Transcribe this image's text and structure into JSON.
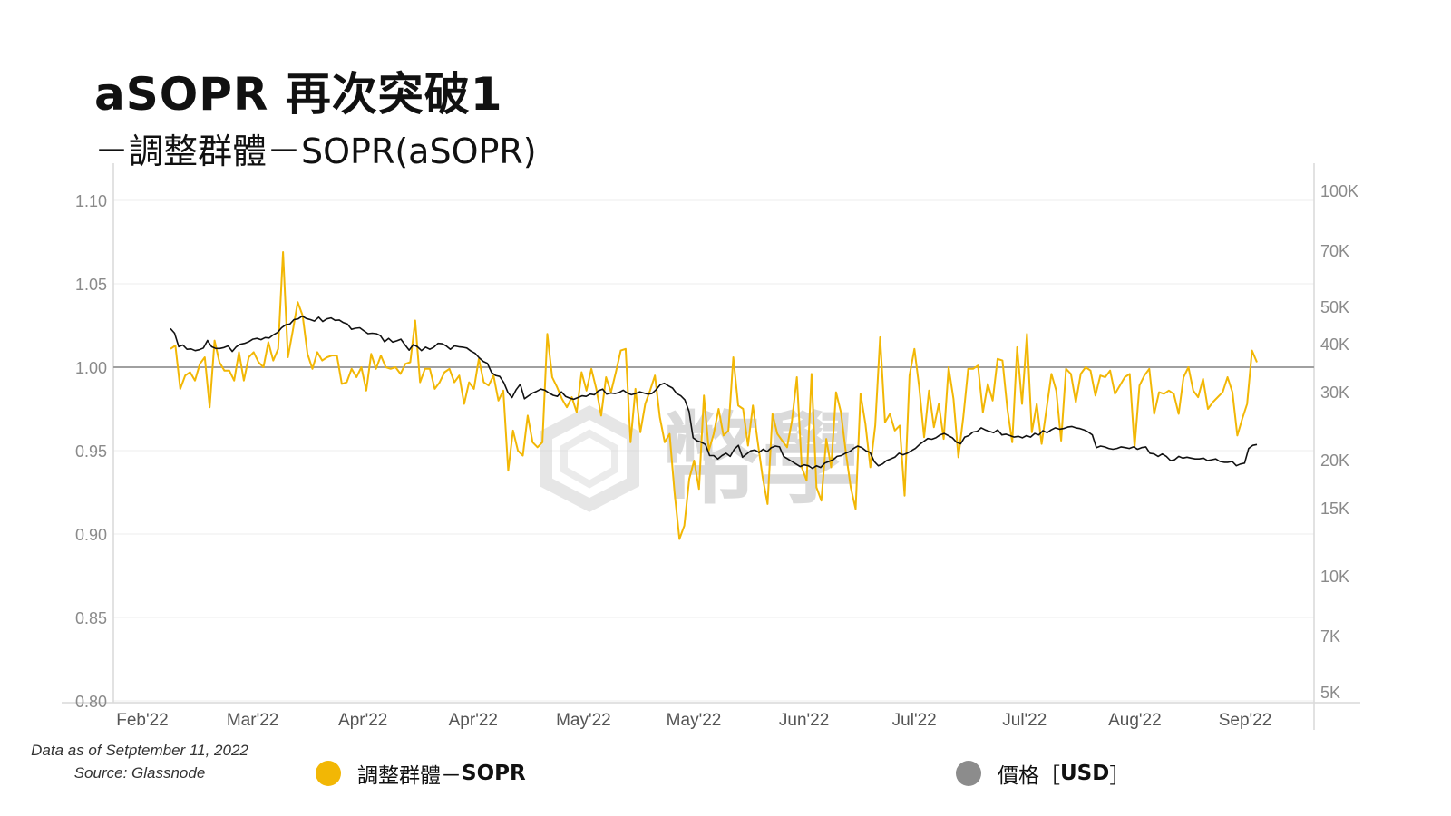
{
  "title": "aSOPR 再次突破1",
  "subtitle": "－調整群體－SOPR(aSOPR)",
  "watermark": "幣學",
  "footer": {
    "line1": "Data as of Setptember 11, 2022",
    "line2": "Source: Glassnode"
  },
  "legend": {
    "sopr_label_a": "調整群體－",
    "sopr_label_b": "SOPR",
    "price_label_a": "價格［",
    "price_label_b": "USD",
    "price_label_c": "］"
  },
  "colors": {
    "sopr": "#f2b705",
    "price": "#111111",
    "price_legend": "#8c8c8c",
    "baseline": "#a0a0a0",
    "grid": "#eeeeee"
  },
  "chart_data": {
    "type": "line",
    "x_ticks": [
      "Feb'22",
      "Mar'22",
      "Apr'22",
      "Apr'22",
      "May'22",
      "May'22",
      "Jun'22",
      "Jul'22",
      "Jul'22",
      "Aug'22",
      "Sep'22"
    ],
    "y_left": {
      "ticks": [
        "1.10",
        "1.05",
        "1.00",
        "0.95",
        "0.90",
        "0.85",
        "0.80"
      ],
      "range": [
        0.8,
        1.1
      ],
      "baseline": 1.0
    },
    "y_right": {
      "scale": "log",
      "ticks": [
        "100K",
        "70K",
        "50K",
        "40K",
        "30K",
        "20K",
        "15K",
        "10K",
        "7K",
        "5K"
      ],
      "range": [
        5000,
        100000
      ]
    },
    "grid": true,
    "series": [
      {
        "name": "調整群體－SOPR",
        "axis": "left",
        "values": [
          1.011,
          1.013,
          0.987,
          0.995,
          0.997,
          0.992,
          1.002,
          1.006,
          0.976,
          1.016,
          1.003,
          0.998,
          0.998,
          0.992,
          1.009,
          0.992,
          1.006,
          1.009,
          1.003,
          1.0,
          1.015,
          1.004,
          1.011,
          1.069,
          1.006,
          1.022,
          1.039,
          1.031,
          1.008,
          0.999,
          1.009,
          1.004,
          1.006,
          1.007,
          1.007,
          0.99,
          0.991,
          0.999,
          0.994,
          1.0,
          0.986,
          1.008,
          0.999,
          1.007,
          1.0,
          0.999,
          1.0,
          0.996,
          1.002,
          1.003,
          1.028,
          0.991,
          0.999,
          0.999,
          0.987,
          0.991,
          0.997,
          0.999,
          0.991,
          0.995,
          0.978,
          0.991,
          0.987,
          1.005,
          0.991,
          0.989,
          0.995,
          0.98,
          0.986,
          0.938,
          0.962,
          0.95,
          0.947,
          0.971,
          0.955,
          0.952,
          0.955,
          1.02,
          0.994,
          0.988,
          0.981,
          0.976,
          0.982,
          0.973,
          0.997,
          0.986,
          0.999,
          0.987,
          0.971,
          0.994,
          0.985,
          0.997,
          1.01,
          1.011,
          0.955,
          0.987,
          0.961,
          0.978,
          0.986,
          0.995,
          0.97,
          0.955,
          0.96,
          0.925,
          0.897,
          0.905,
          0.933,
          0.944,
          0.927,
          0.983,
          0.95,
          0.96,
          0.975,
          0.959,
          0.962,
          1.006,
          0.977,
          0.975,
          0.953,
          0.977,
          0.955,
          0.934,
          0.918,
          0.972,
          0.96,
          0.956,
          0.952,
          0.968,
          0.994,
          0.94,
          0.932,
          0.996,
          0.928,
          0.92,
          0.957,
          0.94,
          0.985,
          0.973,
          0.949,
          0.928,
          0.915,
          0.984,
          0.966,
          0.94,
          0.965,
          1.018,
          0.967,
          0.972,
          0.962,
          0.965,
          0.923,
          0.995,
          1.011,
          0.988,
          0.958,
          0.986,
          0.964,
          0.978,
          0.957,
          1.0,
          0.981,
          0.946,
          0.97,
          0.999,
          0.999,
          1.001,
          0.973,
          0.99,
          0.98,
          1.005,
          1.004,
          0.975,
          0.955,
          1.012,
          0.978,
          1.02,
          0.961,
          0.978,
          0.954,
          0.975,
          0.996,
          0.986,
          0.956,
          0.999,
          0.996,
          0.979,
          0.996,
          1.0,
          0.998,
          0.983,
          0.995,
          0.994,
          0.998,
          0.984,
          0.989,
          0.994,
          0.996,
          0.952,
          0.989,
          0.995,
          0.999,
          0.972,
          0.985,
          0.984,
          0.986,
          0.984,
          0.972,
          0.994,
          1.0,
          0.986,
          0.982,
          0.993,
          0.975,
          0.979,
          0.982,
          0.985,
          0.994,
          0.985,
          0.959,
          0.969,
          0.978,
          1.01,
          1.003
        ]
      },
      {
        "name": "價格［USD］",
        "axis": "right",
        "values": [
          43800,
          42600,
          39300,
          39700,
          38700,
          38800,
          38400,
          38600,
          39000,
          40800,
          39300,
          38900,
          38900,
          39100,
          39500,
          38200,
          39300,
          39900,
          40100,
          40500,
          41100,
          41300,
          41000,
          41500,
          41400,
          42200,
          42800,
          44000,
          44800,
          45000,
          46200,
          46400,
          47200,
          46500,
          46200,
          45800,
          46900,
          45700,
          46400,
          46700,
          46000,
          46100,
          45400,
          45000,
          43600,
          43900,
          44000,
          43200,
          42500,
          42600,
          42500,
          42000,
          40500,
          41300,
          40400,
          40700,
          41100,
          39700,
          38500,
          39800,
          39300,
          38400,
          39200,
          38700,
          39200,
          40100,
          40000,
          39500,
          38700,
          39500,
          39300,
          39200,
          39000,
          38300,
          37800,
          36800,
          36000,
          35600,
          33700,
          33100,
          32900,
          31700,
          29900,
          29000,
          30400,
          31400,
          28800,
          29300,
          29800,
          30100,
          30500,
          30300,
          29800,
          29400,
          29200,
          30000,
          29200,
          28900,
          28700,
          29000,
          29300,
          29200,
          29600,
          29500,
          30200,
          30500,
          29600,
          29800,
          29700,
          29900,
          30300,
          29800,
          29500,
          29700,
          30000,
          29800,
          29600,
          29700,
          30400,
          31300,
          31600,
          31100,
          30700,
          29700,
          29300,
          28600,
          26700,
          22800,
          22400,
          22200,
          21900,
          20500,
          20500,
          20100,
          20500,
          20800,
          20400,
          21300,
          21800,
          20300,
          20700,
          21100,
          21200,
          20900,
          21300,
          21000,
          21500,
          21700,
          21600,
          20400,
          20100,
          19800,
          19500,
          19200,
          19400,
          19300,
          19000,
          19300,
          19100,
          19600,
          19800,
          20000,
          20400,
          20500,
          20800,
          21000,
          21400,
          21700,
          21500,
          21100,
          20900,
          19800,
          19300,
          19500,
          19900,
          20100,
          20300,
          20800,
          20600,
          20800,
          21100,
          21400,
          21900,
          22300,
          22700,
          22600,
          22800,
          23200,
          23400,
          23100,
          22800,
          22200,
          22000,
          22900,
          23100,
          23600,
          23700,
          24200,
          23900,
          23700,
          23500,
          23900,
          23200,
          23300,
          23100,
          22900,
          23000,
          22800,
          23100,
          22900,
          23400,
          23200,
          23800,
          23500,
          23900,
          24200,
          24000,
          24100,
          24300,
          24400,
          24200,
          24100,
          23900,
          23600,
          23200,
          21500,
          21700,
          21600,
          21400,
          21300,
          21400,
          21600,
          21500,
          21400,
          21600,
          21300,
          21500,
          21600,
          20800,
          20700,
          20400,
          20700,
          20400,
          19900,
          20000,
          20400,
          20200,
          20300,
          20200,
          20100,
          20100,
          20200,
          19900,
          20000,
          20100,
          19800,
          19700,
          19700,
          19800,
          19300,
          19500,
          19600,
          21400,
          21800,
          21900
        ]
      }
    ]
  }
}
